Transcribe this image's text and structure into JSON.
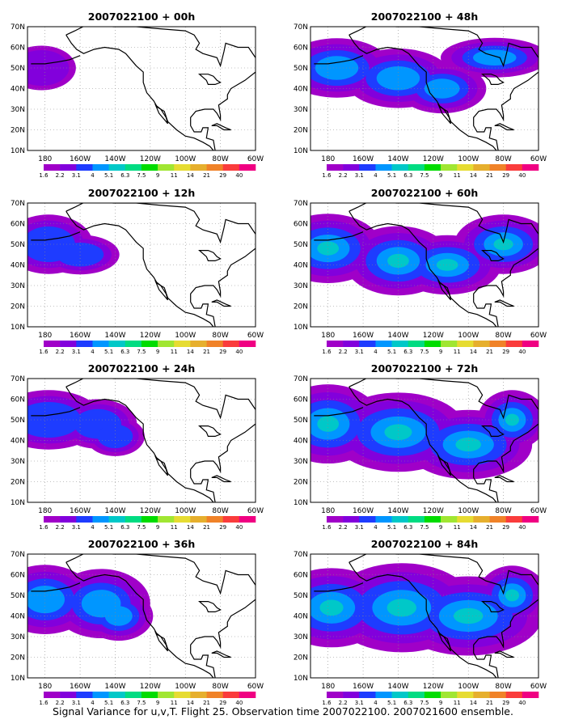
{
  "caption": "Signal Variance for u,v,T. Flight 25. Observation time 2007022100. 2007021600 ensemble.",
  "lat_labels": [
    "70N",
    "60N",
    "50N",
    "40N",
    "30N",
    "20N",
    "10N"
  ],
  "lon_labels": [
    "180",
    "160W",
    "140W",
    "120W",
    "100W",
    "80W",
    "60W"
  ],
  "colorbar": {
    "levels": [
      "1.6",
      "2.2",
      "3.1",
      "4",
      "5.1",
      "6.3",
      "7.5",
      "9",
      "11",
      "14",
      "21",
      "29",
      "40"
    ],
    "colors": [
      "#a000c8",
      "#8200dc",
      "#1e3cff",
      "#0096ff",
      "#00c8c8",
      "#00dc82",
      "#00dc00",
      "#a0e632",
      "#e6dc32",
      "#e6af2d",
      "#f08228",
      "#fa3c3c",
      "#f00082"
    ]
  },
  "panels": [
    {
      "title": "2007022100 + 00h",
      "coverage": 0.2
    },
    {
      "title": "2007022100 + 48h",
      "coverage": 0.6
    },
    {
      "title": "2007022100 + 12h",
      "coverage": 0.35
    },
    {
      "title": "2007022100 + 60h",
      "coverage": 0.7
    },
    {
      "title": "2007022100 + 24h",
      "coverage": 0.5
    },
    {
      "title": "2007022100 + 72h",
      "coverage": 0.8
    },
    {
      "title": "2007022100 + 36h",
      "coverage": 0.6
    },
    {
      "title": "2007022100 + 84h",
      "coverage": 0.85
    }
  ]
}
